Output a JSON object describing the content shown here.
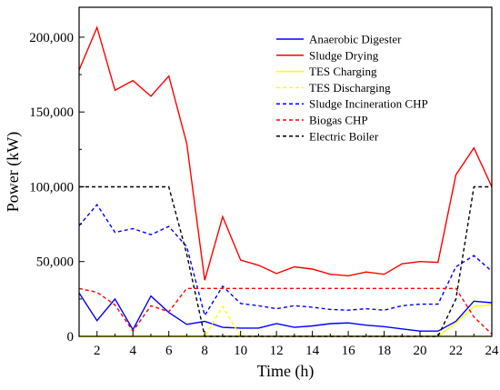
{
  "chart_data": {
    "type": "line",
    "title": "",
    "xlabel": "Time (h)",
    "ylabel": "Power (kW)",
    "xlim": [
      1,
      24
    ],
    "ylim": [
      0,
      220000
    ],
    "x_ticks": [
      2,
      4,
      6,
      8,
      10,
      12,
      14,
      16,
      18,
      20,
      22,
      24
    ],
    "y_ticks": [
      0,
      50000,
      100000,
      150000,
      200000
    ],
    "y_tick_labels": [
      "0",
      "50,000",
      "100,000",
      "150,000",
      "200,000"
    ],
    "grid": false,
    "legend_position": "top-right",
    "x": [
      1,
      2,
      3,
      4,
      5,
      6,
      7,
      8,
      9,
      10,
      11,
      12,
      13,
      14,
      15,
      16,
      17,
      18,
      19,
      20,
      21,
      22,
      23,
      24
    ],
    "series": [
      {
        "name": "Anaerobic Digester",
        "color": "#0000ff",
        "dash": "solid",
        "values": [
          29000,
          10500,
          25000,
          4500,
          27000,
          16000,
          8000,
          10000,
          6000,
          5500,
          5500,
          8500,
          6000,
          7000,
          8500,
          9000,
          7500,
          6500,
          5000,
          3500,
          3500,
          10000,
          23500,
          22500
        ]
      },
      {
        "name": "Sludge Drying",
        "color": "#ff0000",
        "dash": "solid",
        "values": [
          178000,
          206500,
          164500,
          171000,
          160500,
          174000,
          129000,
          37500,
          80000,
          51000,
          47500,
          42000,
          46500,
          45000,
          41500,
          40500,
          43000,
          41500,
          48500,
          50000,
          49500,
          108000,
          126000,
          100000
        ]
      },
      {
        "name": "TES Charging",
        "color": "#ffff00",
        "dash": "solid",
        "values": [
          0,
          0,
          0,
          0,
          0,
          0,
          0,
          0,
          0,
          0,
          0,
          0,
          0,
          0,
          0,
          0,
          0,
          0,
          0,
          0,
          0,
          9000,
          20000,
          21000
        ]
      },
      {
        "name": "TES Discharging",
        "color": "#ffff00",
        "dash": "dash",
        "values": [
          0,
          0,
          0,
          0,
          0,
          0,
          0,
          0,
          20000,
          0,
          0,
          0,
          0,
          0,
          0,
          0,
          0,
          0,
          0,
          0,
          0,
          0,
          0,
          0
        ]
      },
      {
        "name": "Sludge Incineration CHP",
        "color": "#0000ff",
        "dash": "dash",
        "values": [
          74000,
          88000,
          69500,
          72000,
          68000,
          73500,
          60000,
          14000,
          33500,
          22000,
          20500,
          18500,
          20500,
          19500,
          18000,
          17500,
          18500,
          17500,
          20500,
          21500,
          21500,
          46500,
          54000,
          43500
        ]
      },
      {
        "name": "Biogas CHP",
        "color": "#ff0000",
        "dash": "dash",
        "values": [
          32000,
          29500,
          21000,
          3500,
          20500,
          16500,
          32000,
          32000,
          32000,
          32000,
          32000,
          32000,
          32000,
          32000,
          32000,
          32000,
          32000,
          32000,
          32000,
          32000,
          32000,
          32000,
          13000,
          1500
        ]
      },
      {
        "name": "Electric Boiler",
        "color": "#000000",
        "dash": "dash",
        "values": [
          100000,
          100000,
          100000,
          100000,
          100000,
          100000,
          55000,
          0,
          0,
          0,
          0,
          0,
          0,
          0,
          0,
          0,
          0,
          0,
          0,
          0,
          0,
          25000,
          100000,
          100000
        ]
      }
    ]
  }
}
